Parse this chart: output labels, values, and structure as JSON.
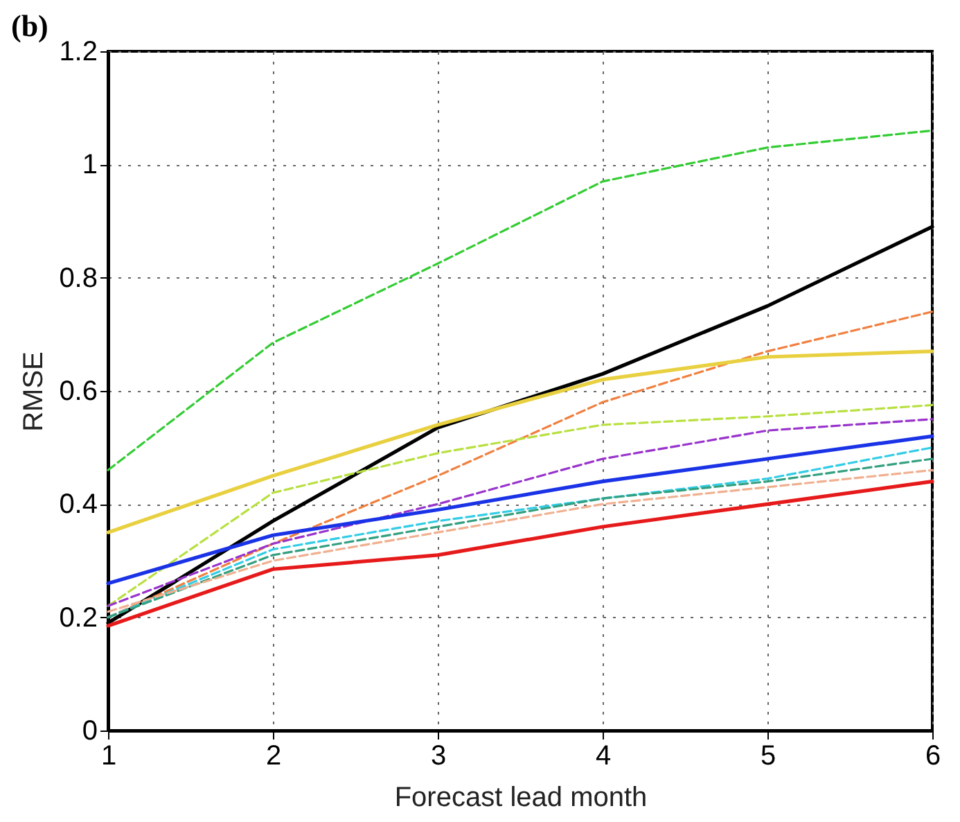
{
  "chart_data": {
    "type": "line",
    "title": "(b)",
    "xlabel": "Forecast lead month",
    "ylabel": "RMSE",
    "x": [
      1,
      2,
      3,
      4,
      5,
      6
    ],
    "xlim": [
      1,
      6
    ],
    "xticks": [
      1,
      2,
      3,
      4,
      5,
      6
    ],
    "ylim": [
      0,
      1.2
    ],
    "yticks": [
      0,
      0.2,
      0.4,
      0.6,
      0.8,
      1,
      1.2
    ],
    "grid": true,
    "marker": "none",
    "series": [
      {
        "color": "#33cc33",
        "line_style": "dashed",
        "values": [
          0.46,
          0.685,
          0.825,
          0.97,
          1.03,
          1.06
        ]
      },
      {
        "color": "#000000",
        "line_style": "solid",
        "values": [
          0.19,
          0.37,
          0.535,
          0.63,
          0.75,
          0.89
        ]
      },
      {
        "color": "#f08040",
        "line_style": "dashed",
        "values": [
          0.2,
          0.33,
          0.45,
          0.58,
          0.67,
          0.74
        ]
      },
      {
        "color": "#e8d040",
        "line_style": "solid",
        "values": [
          0.35,
          0.45,
          0.54,
          0.62,
          0.66,
          0.67
        ]
      },
      {
        "color": "#b8e040",
        "line_style": "dashed",
        "values": [
          0.22,
          0.42,
          0.49,
          0.54,
          0.555,
          0.575
        ]
      },
      {
        "color": "#9933cc",
        "line_style": "dashed",
        "values": [
          0.22,
          0.33,
          0.4,
          0.48,
          0.53,
          0.55
        ]
      },
      {
        "color": "#1a33e6",
        "line_style": "solid",
        "values": [
          0.26,
          0.345,
          0.39,
          0.44,
          0.48,
          0.52
        ]
      },
      {
        "color": "#33cce6",
        "line_style": "dashed",
        "values": [
          0.2,
          0.32,
          0.37,
          0.41,
          0.445,
          0.5
        ]
      },
      {
        "color": "#33a080",
        "line_style": "dashed",
        "values": [
          0.2,
          0.31,
          0.36,
          0.41,
          0.44,
          0.48
        ]
      },
      {
        "color": "#f0b090",
        "line_style": "dashed",
        "values": [
          0.21,
          0.3,
          0.35,
          0.4,
          0.43,
          0.46
        ]
      },
      {
        "color": "#e61a1a",
        "line_style": "solid",
        "values": [
          0.185,
          0.285,
          0.31,
          0.36,
          0.4,
          0.44
        ]
      }
    ]
  }
}
